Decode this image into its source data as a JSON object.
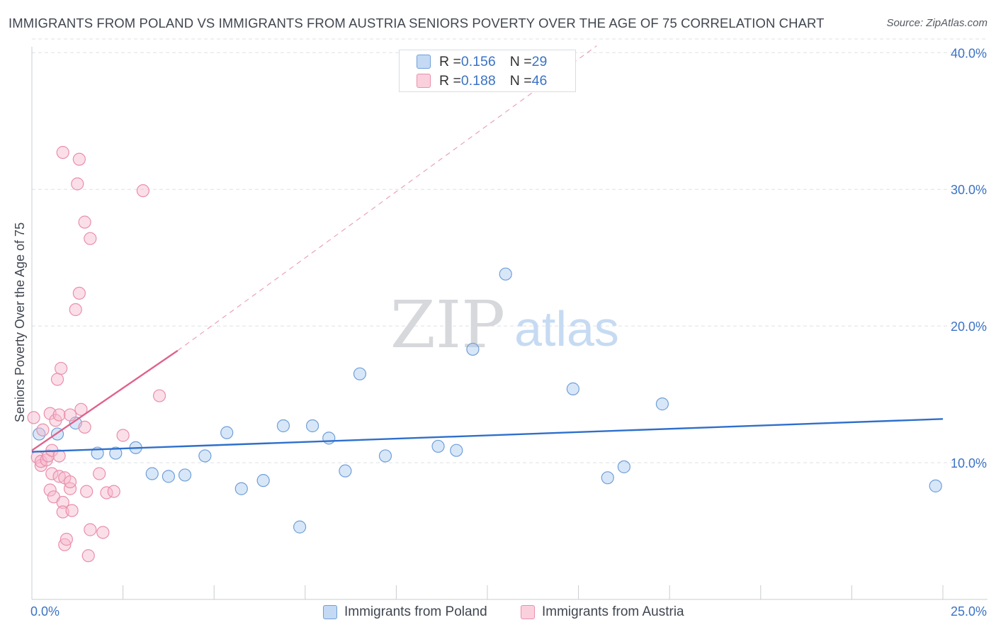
{
  "title": "IMMIGRANTS FROM POLAND VS IMMIGRANTS FROM AUSTRIA SENIORS POVERTY OVER THE AGE OF 75 CORRELATION CHART",
  "source": "Source: ZipAtlas.com",
  "watermark": {
    "zip": "ZIP",
    "atlas": "atlas"
  },
  "legend_top": [
    {
      "r_label": "R = ",
      "r_value": "0.156",
      "n_label": "N = ",
      "n_value": "29",
      "color": "#a9c9f0"
    },
    {
      "r_label": "R = ",
      "r_value": "0.188",
      "n_label": "N = ",
      "n_value": "46",
      "color": "#f6b7cb"
    }
  ],
  "legend_bottom": [
    {
      "label": "Immigrants from Poland",
      "color": "#a9c9f0"
    },
    {
      "label": "Immigrants from Austria",
      "color": "#f6b7cb"
    }
  ],
  "chart_data": {
    "type": "scatter",
    "title": "IMMIGRANTS FROM POLAND VS IMMIGRANTS FROM AUSTRIA SENIORS POVERTY OVER THE AGE OF 75 CORRELATION CHART",
    "xlabel": "",
    "ylabel": "Seniors Poverty Over the Age of 75",
    "xlim": [
      0,
      25
    ],
    "ylim": [
      0,
      41
    ],
    "x_tick_labels": [
      "0.0%",
      "25.0%"
    ],
    "y_ticks": [
      10,
      20,
      30,
      40
    ],
    "y_tick_labels": [
      "10.0%",
      "20.0%",
      "30.0%",
      "40.0%"
    ],
    "grid": true,
    "series": [
      {
        "name": "Immigrants from Poland",
        "color": "#a9c9f0",
        "stroke": "#6f9fd8",
        "trend": {
          "x0": 0,
          "y0": 10.8,
          "x1": 25,
          "y1": 13.2,
          "color": "#2e6fcc",
          "dashed_extension": false
        },
        "points": [
          [
            0.2,
            12.1
          ],
          [
            0.7,
            12.1
          ],
          [
            1.2,
            12.9
          ],
          [
            1.8,
            10.7
          ],
          [
            2.3,
            10.7
          ],
          [
            2.85,
            11.1
          ],
          [
            3.3,
            9.2
          ],
          [
            3.75,
            9.0
          ],
          [
            4.2,
            9.1
          ],
          [
            4.75,
            10.5
          ],
          [
            5.35,
            12.2
          ],
          [
            5.75,
            8.1
          ],
          [
            6.35,
            8.7
          ],
          [
            6.9,
            12.7
          ],
          [
            7.35,
            5.3
          ],
          [
            7.7,
            12.7
          ],
          [
            8.15,
            11.8
          ],
          [
            8.6,
            9.4
          ],
          [
            9.0,
            16.5
          ],
          [
            9.7,
            10.5
          ],
          [
            11.15,
            11.2
          ],
          [
            11.65,
            10.9
          ],
          [
            12.1,
            18.3
          ],
          [
            13.0,
            23.8
          ],
          [
            14.85,
            15.4
          ],
          [
            15.8,
            8.9
          ],
          [
            16.25,
            9.7
          ],
          [
            17.3,
            14.3
          ],
          [
            24.8,
            8.3
          ]
        ]
      },
      {
        "name": "Immigrants from Austria",
        "color": "#f6b7cb",
        "stroke": "#e98fab",
        "trend": {
          "x0": 0,
          "y0": 10.9,
          "x1": 4.0,
          "y1": 18.2,
          "color": "#e0628c",
          "dashed_to": [
            15.5,
            40.5
          ]
        },
        "points": [
          [
            0.05,
            13.3
          ],
          [
            0.15,
            10.4
          ],
          [
            0.25,
            9.8
          ],
          [
            0.25,
            10.1
          ],
          [
            0.3,
            12.4
          ],
          [
            0.4,
            10.2
          ],
          [
            0.45,
            10.5
          ],
          [
            0.5,
            8.0
          ],
          [
            0.5,
            13.6
          ],
          [
            0.55,
            9.2
          ],
          [
            0.55,
            10.9
          ],
          [
            0.6,
            7.5
          ],
          [
            0.65,
            13.1
          ],
          [
            0.7,
            16.1
          ],
          [
            0.75,
            9.0
          ],
          [
            0.75,
            10.5
          ],
          [
            0.75,
            13.5
          ],
          [
            0.8,
            16.9
          ],
          [
            0.85,
            7.1
          ],
          [
            0.85,
            6.4
          ],
          [
            0.85,
            32.7
          ],
          [
            0.9,
            4.0
          ],
          [
            0.9,
            8.9
          ],
          [
            0.95,
            4.4
          ],
          [
            1.05,
            8.1
          ],
          [
            1.05,
            8.6
          ],
          [
            1.05,
            13.5
          ],
          [
            1.1,
            6.5
          ],
          [
            1.2,
            21.2
          ],
          [
            1.25,
            30.4
          ],
          [
            1.3,
            32.2
          ],
          [
            1.3,
            22.4
          ],
          [
            1.35,
            13.9
          ],
          [
            1.45,
            12.6
          ],
          [
            1.45,
            27.6
          ],
          [
            1.5,
            7.9
          ],
          [
            1.55,
            3.2
          ],
          [
            1.6,
            5.1
          ],
          [
            1.6,
            26.4
          ],
          [
            1.85,
            9.2
          ],
          [
            1.95,
            4.9
          ],
          [
            2.05,
            7.8
          ],
          [
            2.25,
            7.9
          ],
          [
            2.5,
            12.0
          ],
          [
            3.05,
            29.9
          ],
          [
            3.5,
            14.9
          ]
        ]
      }
    ]
  }
}
